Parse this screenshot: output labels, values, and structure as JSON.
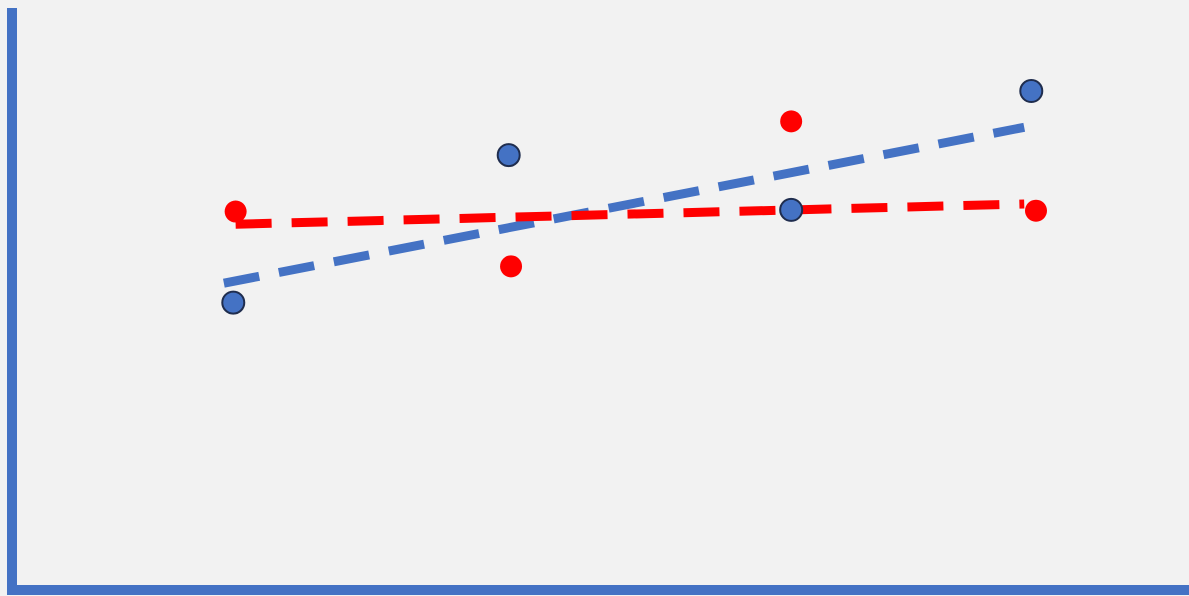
{
  "chart_data": {
    "type": "scatter",
    "title": "",
    "xlabel": "",
    "ylabel": "",
    "grid": false,
    "xlim": [
      0,
      5
    ],
    "ylim": [
      0,
      7
    ],
    "axis_color": "#4472c4",
    "background_color": "#f2f2f2",
    "series": [
      {
        "color": "#ff0000",
        "marker_outline": null,
        "points": [
          {
            "x": 0.95,
            "y": 4.49
          },
          {
            "x": 2.12,
            "y": 3.84
          },
          {
            "x": 3.31,
            "y": 5.56
          },
          {
            "x": 4.35,
            "y": 4.5
          }
        ],
        "trendline": {
          "style": "dashed",
          "x": [
            0.95,
            4.3
          ],
          "y": [
            4.34,
            4.58
          ]
        }
      },
      {
        "color": "#4472c4",
        "marker_outline": "#1f2d4e",
        "points": [
          {
            "x": 0.94,
            "y": 3.41
          },
          {
            "x": 2.11,
            "y": 5.16
          },
          {
            "x": 3.31,
            "y": 4.51
          },
          {
            "x": 4.33,
            "y": 5.92
          }
        ],
        "trendline": {
          "style": "dashed",
          "x": [
            0.9,
            4.3
          ],
          "y": [
            3.64,
            5.49
          ]
        }
      }
    ]
  }
}
